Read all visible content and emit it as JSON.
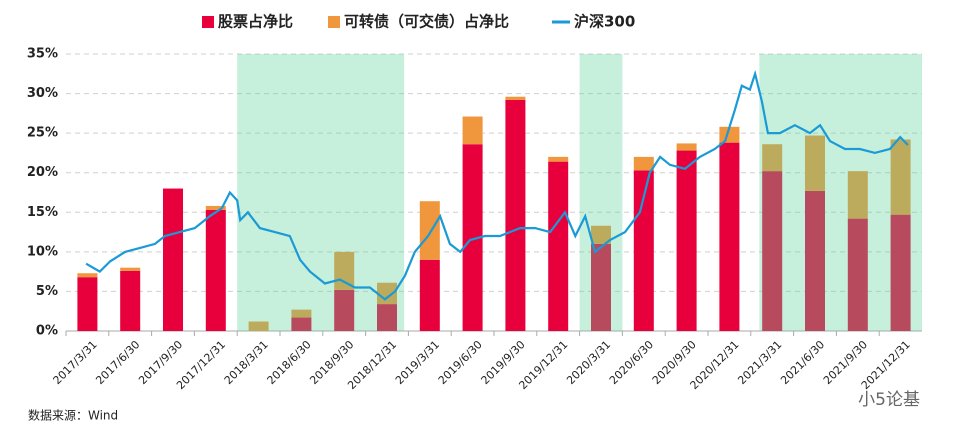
{
  "chart_data": {
    "type": "bar",
    "stacked": true,
    "categories": [
      "2017/3/31",
      "2017/6/30",
      "2017/9/30",
      "2017/12/31",
      "2018/3/31",
      "2018/6/30",
      "2018/9/30",
      "2018/12/31",
      "2019/3/31",
      "2019/6/30",
      "2019/9/30",
      "2019/12/31",
      "2020/3/31",
      "2020/6/30",
      "2020/9/30",
      "2020/12/31",
      "2021/3/31",
      "2021/6/30",
      "2021/9/30",
      "2021/12/31"
    ],
    "series": [
      {
        "name": "股票占净比",
        "color": "#e8003d",
        "values": [
          6.8,
          7.6,
          18,
          15.3,
          0,
          1.7,
          5.2,
          3.4,
          9.0,
          23.6,
          29.2,
          21.4,
          11.0,
          20.3,
          22.8,
          23.8,
          20.2,
          17.7,
          14.2,
          14.7
        ]
      },
      {
        "name": "可转债（可交债）占净比",
        "color": "#f0963c",
        "values": [
          0.5,
          0.4,
          0,
          0.5,
          1.2,
          1.0,
          4.8,
          2.7,
          7.4,
          3.5,
          0.4,
          0.6,
          2.3,
          1.7,
          0.9,
          2.0,
          3.4,
          7.0,
          6.0,
          9.5
        ]
      },
      {
        "name": "沪深300",
        "type": "line",
        "color": "#1a9ad6",
        "x": [
          0.47,
          0.79,
          1.03,
          1.38,
          1.73,
          2.08,
          2.31,
          2.66,
          3.01,
          3.36,
          3.64,
          3.83,
          4.0,
          4.07,
          4.25,
          4.53,
          4.88,
          5.23,
          5.47,
          5.7,
          6.05,
          6.4,
          6.75,
          7.1,
          7.45,
          7.69,
          7.92,
          8.15,
          8.46,
          8.74,
          8.97,
          9.21,
          9.44,
          9.79,
          10.14,
          10.37,
          10.61,
          10.96,
          11.31,
          11.66,
          11.9,
          12.13,
          12.36,
          12.71,
          13.06,
          13.41,
          13.64,
          13.88,
          14.11,
          14.46,
          14.81,
          15.16,
          15.4,
          15.63,
          15.79,
          15.98,
          16.1,
          16.26,
          16.4,
          16.68,
          17.03,
          17.38,
          17.62,
          17.85,
          18.2,
          18.55,
          18.9,
          19.25,
          19.49,
          19.67
        ],
        "values": [
          8.5,
          7.5,
          8.8,
          10,
          10.5,
          11,
          12,
          12.5,
          13,
          14.5,
          15.5,
          17.5,
          16.5,
          14,
          15,
          13,
          12.5,
          12,
          9,
          7.5,
          6,
          6.5,
          5.5,
          5.5,
          4,
          5,
          7,
          10,
          12,
          14.5,
          11,
          10,
          11.5,
          12,
          12,
          12.5,
          13,
          13,
          12.5,
          15,
          12,
          14.5,
          10,
          11.5,
          12.5,
          15,
          20,
          22,
          21,
          20.5,
          22,
          23,
          24,
          28,
          31,
          30.5,
          32.5,
          29,
          25,
          25,
          26,
          25,
          26,
          24,
          23,
          23,
          22.5,
          23,
          24.5,
          23.5
        ]
      }
    ],
    "xlim": [
      0,
      20
    ],
    "shaded_spans": [
      [
        4.0,
        7.9
      ],
      [
        12.0,
        13.0
      ],
      [
        16.2,
        20.0
      ]
    ],
    "ylim": [
      0,
      35
    ],
    "yticks": [
      {
        "value": 0,
        "label": "0%"
      },
      {
        "value": 5,
        "label": "5%"
      },
      {
        "value": 10,
        "label": "10%"
      },
      {
        "value": 15,
        "label": "15%"
      },
      {
        "value": 20,
        "label": "20%"
      },
      {
        "value": 25,
        "label": "25%"
      },
      {
        "value": 30,
        "label": "30%"
      },
      {
        "value": 35,
        "label": "35%"
      }
    ],
    "grid": true,
    "legend": "top",
    "source": "数据来源：Wind",
    "watermark": "小5论基"
  }
}
